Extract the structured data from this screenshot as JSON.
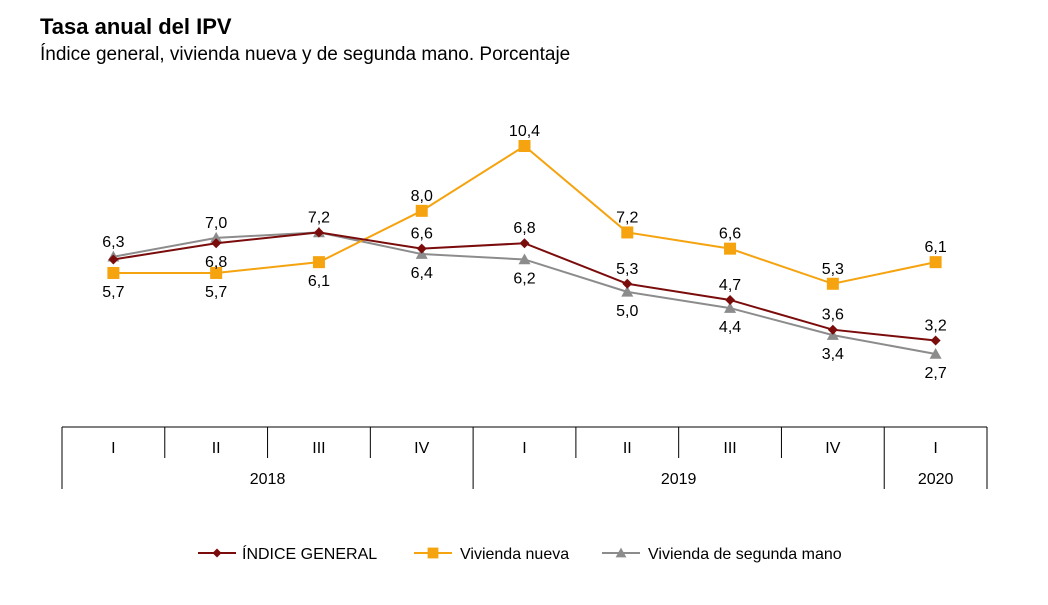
{
  "title": "Tasa anual del IPV",
  "subtitle": "Índice general, vivienda nueva y de segunda mano. Porcentaje",
  "chart_data": {
    "type": "line",
    "categories": [
      "I",
      "II",
      "III",
      "IV",
      "I",
      "II",
      "III",
      "IV",
      "I"
    ],
    "groups": [
      {
        "label": "2018",
        "span": 4
      },
      {
        "label": "2019",
        "span": 4
      },
      {
        "label": "2020",
        "span": 1
      }
    ],
    "series": [
      {
        "name": "ÍNDICE GENERAL",
        "color": "#7b0c0c",
        "marker": "diamond",
        "values": [
          6.2,
          6.8,
          7.2,
          6.6,
          6.8,
          5.3,
          4.7,
          3.6,
          3.2
        ],
        "labels": [
          "",
          "6,8",
          "",
          "6,6",
          "6,8",
          "5,3",
          "4,7",
          "3,6",
          "3,2"
        ]
      },
      {
        "name": "Vivienda nueva",
        "color": "#f5a30f",
        "marker": "square",
        "values": [
          5.7,
          5.7,
          6.1,
          8.0,
          10.4,
          7.2,
          6.6,
          5.3,
          6.1
        ],
        "labels": [
          "5,7",
          "5,7",
          "6,1",
          "8,0",
          "10,4",
          "7,2",
          "6,6",
          "5,3",
          "6,1"
        ]
      },
      {
        "name": "Vivienda de segunda mano",
        "color": "#8c8c8c",
        "marker": "triangle",
        "values": [
          6.3,
          7.0,
          7.2,
          6.4,
          6.2,
          5.0,
          4.4,
          3.4,
          2.7
        ],
        "labels": [
          "6,3",
          "7,0",
          "7,2",
          "6,4",
          "6,2",
          "5,0",
          "4,4",
          "3,4",
          "2,7"
        ]
      }
    ],
    "grid": false,
    "legend_position": "bottom"
  }
}
